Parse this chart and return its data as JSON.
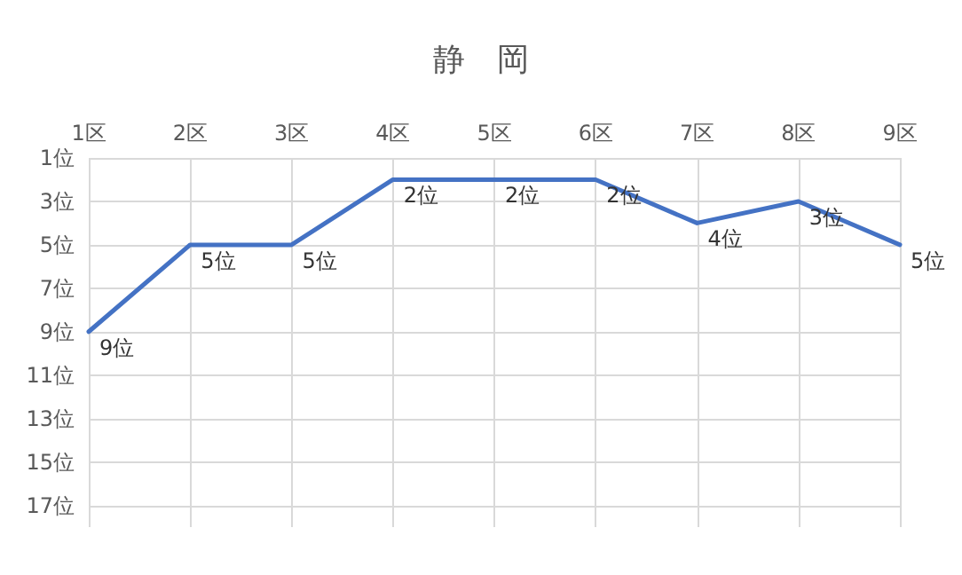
{
  "chart_data": {
    "type": "line",
    "title": "静　岡",
    "categories": [
      "1区",
      "2区",
      "3区",
      "4区",
      "5区",
      "6区",
      "7区",
      "8区",
      "9区"
    ],
    "series": [
      {
        "color": "#4472c4",
        "values": [
          9,
          5,
          5,
          2,
          2,
          2,
          4,
          3,
          5
        ],
        "value_labels": [
          "9位",
          "5位",
          "5位",
          "2位",
          "2位",
          "2位",
          "4位",
          "3位",
          "5位"
        ]
      }
    ],
    "ylim": [
      18,
      1
    ],
    "yticks": [
      {
        "value": 1,
        "label": "1位"
      },
      {
        "value": 3,
        "label": "3位"
      },
      {
        "value": 5,
        "label": "5位"
      },
      {
        "value": 7,
        "label": "7位"
      },
      {
        "value": 9,
        "label": "9位"
      },
      {
        "value": 11,
        "label": "11位"
      },
      {
        "value": 13,
        "label": "13位"
      },
      {
        "value": 15,
        "label": "15位"
      },
      {
        "value": 17,
        "label": "17位"
      }
    ],
    "grid": true,
    "marker": "none",
    "line_style": "solid"
  }
}
